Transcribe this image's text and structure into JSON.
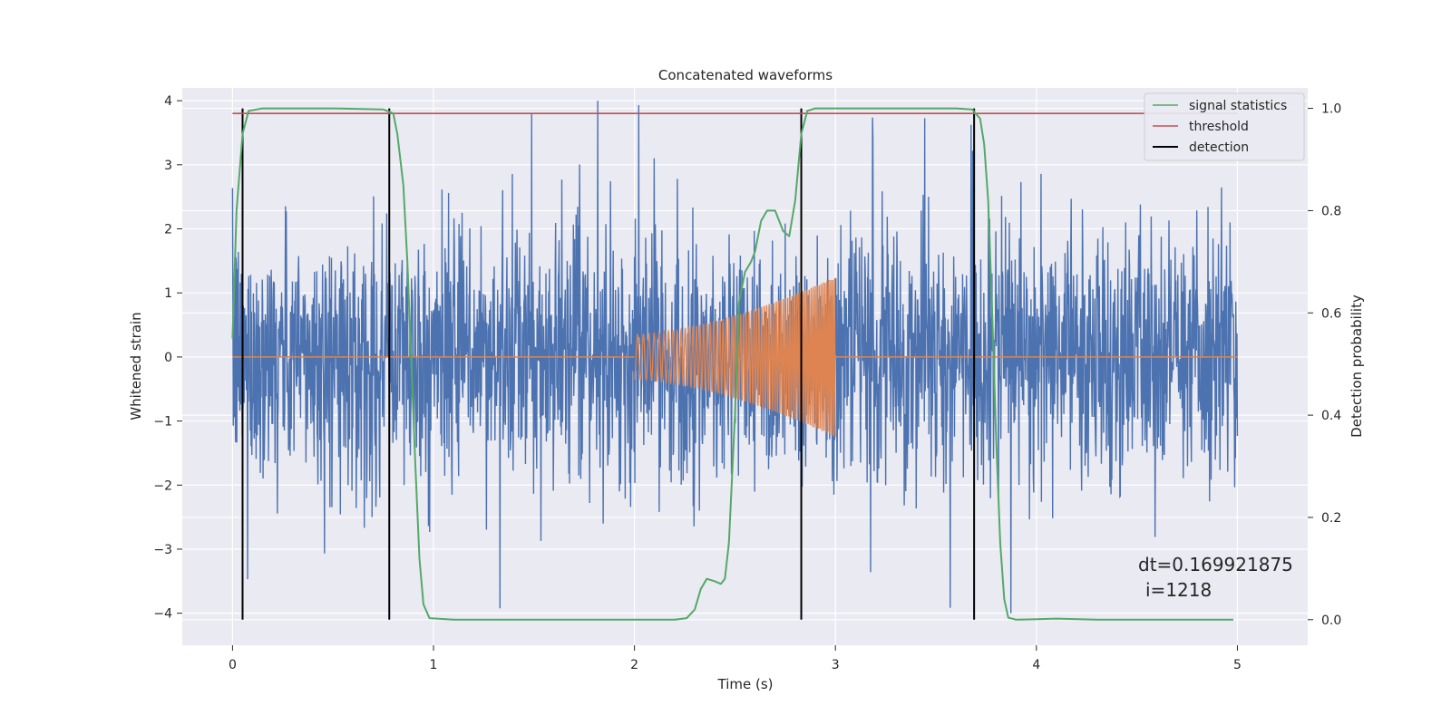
{
  "chart_data": {
    "type": "line",
    "title": "Concatenated waveforms",
    "xlabel": "Time (s)",
    "ylabel": "Whitened strain",
    "y2label": "Detection probability",
    "xlim": [
      -0.25,
      5.35
    ],
    "ylim": [
      -4.5,
      4.2
    ],
    "y2lim": [
      -0.05,
      1.04
    ],
    "x_ticks": [
      0,
      1,
      2,
      3,
      4,
      5
    ],
    "y_ticks": [
      -4,
      -3,
      -2,
      -1,
      0,
      1,
      2,
      3,
      4
    ],
    "y2_ticks": [
      0.0,
      0.2,
      0.4,
      0.6,
      0.8,
      1.0
    ],
    "x_tick_labels": [
      "0",
      "1",
      "2",
      "3",
      "4",
      "5"
    ],
    "y_tick_labels": [
      "−4",
      "−3",
      "−2",
      "−1",
      "0",
      "1",
      "2",
      "3",
      "4"
    ],
    "y2_tick_labels": [
      "0.0",
      "0.2",
      "0.4",
      "0.6",
      "0.8",
      "1.0"
    ],
    "grid": true,
    "legend_position": "top-right",
    "legend": [
      "signal statistics",
      "threshold",
      "detection"
    ],
    "annotation": [
      "dt=0.169921875",
      "i=1218"
    ],
    "colors": {
      "background": "#eaeaf2",
      "noise": "#4c72b0",
      "injection": "#dd8452",
      "signal_statistics": "#55a868",
      "threshold": "#c44e52",
      "detection": "#000000",
      "grid": "#ffffff"
    },
    "series": [
      {
        "name": "",
        "description": "whitened strain noise, t from 0 to 5 s, amplitude mostly within ±2.5, peaks to ±4",
        "t_range": [
          0,
          5
        ],
        "typical_amplitude": 2.0,
        "max_amplitude": 4.0
      },
      {
        "name": "",
        "description": "chirp injection from t=2.0 to t=3.0 s",
        "t_range": [
          2.0,
          3.0
        ],
        "start_amplitude": 0.35,
        "end_amplitude": 1.25
      },
      {
        "name": "signal statistics",
        "axis": "right",
        "points": [
          [
            0,
            0.55
          ],
          [
            0.02,
            0.8
          ],
          [
            0.05,
            0.95
          ],
          [
            0.08,
            0.995
          ],
          [
            0.15,
            1.0
          ],
          [
            0.5,
            1.0
          ],
          [
            0.75,
            0.998
          ],
          [
            0.8,
            0.99
          ],
          [
            0.82,
            0.95
          ],
          [
            0.85,
            0.85
          ],
          [
            0.87,
            0.7
          ],
          [
            0.89,
            0.5
          ],
          [
            0.91,
            0.3
          ],
          [
            0.93,
            0.12
          ],
          [
            0.95,
            0.03
          ],
          [
            0.98,
            0.003
          ],
          [
            1.1,
            0.0
          ],
          [
            1.5,
            0.0
          ],
          [
            2.0,
            0.0
          ],
          [
            2.2,
            0.0
          ],
          [
            2.26,
            0.003
          ],
          [
            2.3,
            0.02
          ],
          [
            2.33,
            0.06
          ],
          [
            2.36,
            0.08
          ],
          [
            2.4,
            0.075
          ],
          [
            2.43,
            0.07
          ],
          [
            2.45,
            0.08
          ],
          [
            2.47,
            0.15
          ],
          [
            2.5,
            0.4
          ],
          [
            2.52,
            0.62
          ],
          [
            2.55,
            0.68
          ],
          [
            2.58,
            0.7
          ],
          [
            2.6,
            0.72
          ],
          [
            2.63,
            0.78
          ],
          [
            2.66,
            0.8
          ],
          [
            2.7,
            0.8
          ],
          [
            2.74,
            0.76
          ],
          [
            2.77,
            0.75
          ],
          [
            2.8,
            0.82
          ],
          [
            2.83,
            0.95
          ],
          [
            2.86,
            0.995
          ],
          [
            2.9,
            1.0
          ],
          [
            3.2,
            1.0
          ],
          [
            3.6,
            1.0
          ],
          [
            3.68,
            0.998
          ],
          [
            3.72,
            0.98
          ],
          [
            3.74,
            0.93
          ],
          [
            3.76,
            0.82
          ],
          [
            3.78,
            0.6
          ],
          [
            3.8,
            0.35
          ],
          [
            3.82,
            0.15
          ],
          [
            3.84,
            0.04
          ],
          [
            3.86,
            0.004
          ],
          [
            3.9,
            0.0
          ],
          [
            4.1,
            0.002
          ],
          [
            4.3,
            0.0
          ],
          [
            4.6,
            0.0
          ],
          [
            4.98,
            0.0
          ]
        ]
      },
      {
        "name": "threshold",
        "axis": "right",
        "y": 0.99,
        "x_range": [
          0,
          5
        ]
      },
      {
        "name": "detection",
        "axis": "right",
        "x": [
          0.05,
          0.78,
          2.83,
          3.69
        ],
        "y_range": [
          0.0,
          1.0
        ]
      }
    ]
  }
}
